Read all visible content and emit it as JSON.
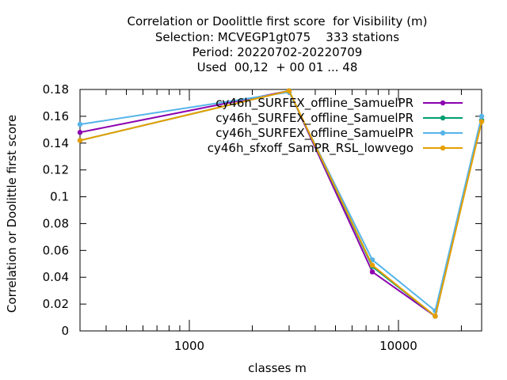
{
  "chart_data": {
    "type": "line",
    "title_lines": [
      "Correlation or Doolittle first score  for Visibility (m)",
      "Selection: MCVEGP1gt075    333 stations",
      "Period: 20220702-20220709",
      "Used  00,12  + 00 01 ... 48"
    ],
    "xlabel": "classes m",
    "ylabel": "Correlation or Doolittle first score",
    "x_scale": "log",
    "xlim": [
      300,
      25000
    ],
    "ylim": [
      0,
      0.18
    ],
    "x_tick_labels": [
      "1000",
      "10000"
    ],
    "y_ticks": [
      "0",
      "0.02",
      "0.04",
      "0.06",
      "0.08",
      "0.1",
      "0.12",
      "0.14",
      "0.16",
      "0.18"
    ],
    "grid": false,
    "legend_position": "top-right",
    "series": [
      {
        "name": "cy46h_SURFEX_offline_SamuelPR",
        "color": "#8b00b0",
        "x": [
          300,
          3000,
          7500,
          15000,
          25000
        ],
        "y": [
          0.148,
          0.179,
          0.044,
          0.011,
          0.157
        ]
      },
      {
        "name": "cy46h_SURFEX_offline_SamuelPR",
        "color": "#009e73",
        "x": [
          300,
          3000,
          7500,
          15000,
          25000
        ],
        "y": [
          0.142,
          0.179,
          0.048,
          0.011,
          0.157
        ]
      },
      {
        "name": "cy46h_SURFEX_offline_SamuelPR",
        "color": "#56b4e9",
        "x": [
          300,
          3000,
          7500,
          15000,
          25000
        ],
        "y": [
          0.154,
          0.178,
          0.053,
          0.015,
          0.16
        ]
      },
      {
        "name": "cy46h_sfxoff_SamPR_RSL_lowvego",
        "color": "#e69f00",
        "x": [
          300,
          3000,
          7500,
          15000,
          25000
        ],
        "y": [
          0.142,
          0.179,
          0.049,
          0.011,
          0.156
        ]
      }
    ]
  }
}
